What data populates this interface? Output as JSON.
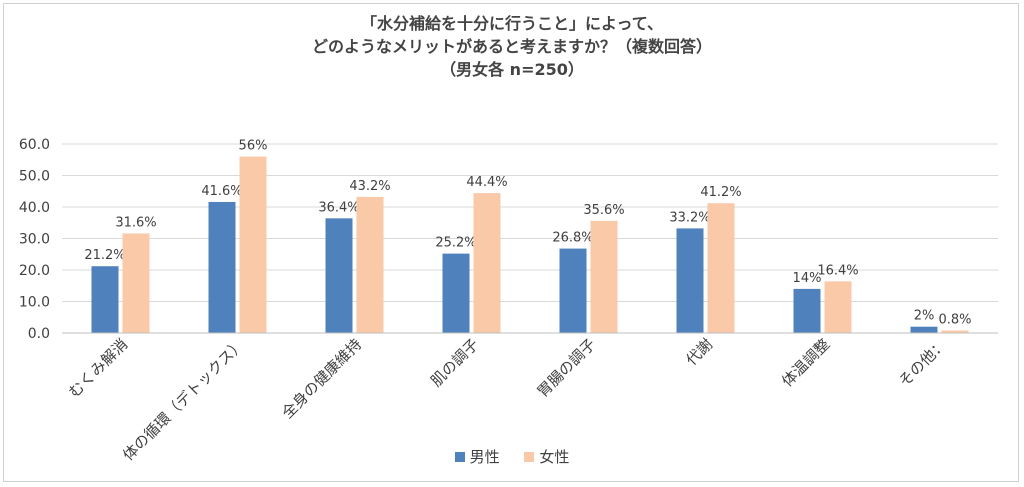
{
  "chart_data": {
    "type": "bar",
    "title_lines": [
      "「水分補給を十分に行うこと」によって、",
      "どのようなメリットがあると考えますか？（複数回答）",
      "（男女各 n=250）"
    ],
    "categories": [
      "むくみ解消",
      "体の循環（デトックス）",
      "全身の健康維持",
      "肌の調子",
      "胃腸の調子",
      "代謝",
      "体温調整",
      "その他："
    ],
    "series": [
      {
        "name": "男性",
        "values": [
          21.2,
          41.6,
          36.4,
          25.2,
          26.8,
          33.2,
          14,
          2
        ],
        "labels": [
          "21.2%",
          "41.6%",
          "36.4%",
          "25.2%",
          "26.8%",
          "33.2%",
          "14%",
          "2%"
        ],
        "color": "#4f81bd"
      },
      {
        "name": "女性",
        "values": [
          31.6,
          56,
          43.2,
          44.4,
          35.6,
          41.2,
          16.4,
          0.8
        ],
        "labels": [
          "31.6%",
          "56%",
          "43.2%",
          "44.4%",
          "35.6%",
          "41.2%",
          "16.4%",
          "0.8%"
        ],
        "color": "#f9c9a8"
      }
    ],
    "yticks": [
      "0.0",
      "10.0",
      "20.0",
      "30.0",
      "40.0",
      "50.0",
      "60.0"
    ],
    "ylim": [
      0,
      60
    ],
    "grid": true,
    "legend_position": "bottom"
  }
}
